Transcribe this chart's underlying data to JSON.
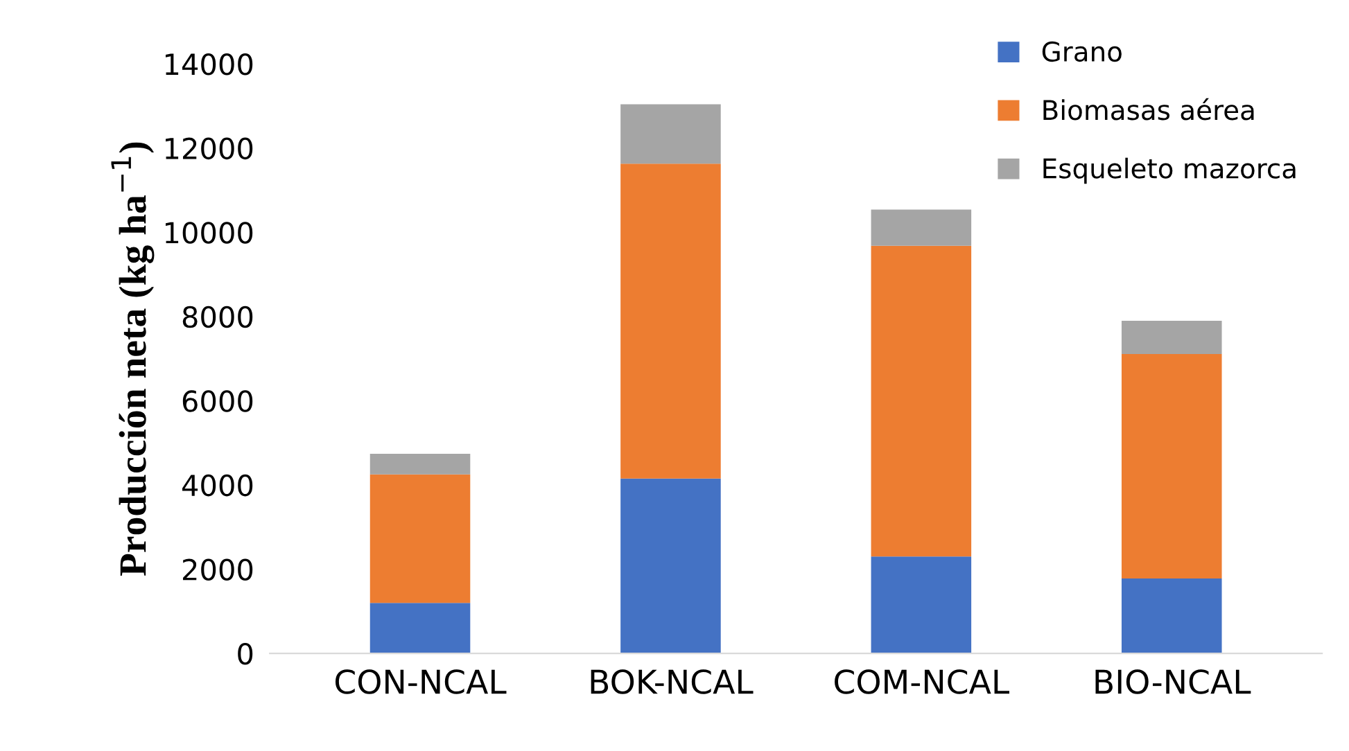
{
  "chart_data": {
    "type": "bar",
    "stacked": true,
    "ylabel": "Producción neta (kg ha$^{−1}$)",
    "categories": [
      "CON-NCAL",
      "BOK-NCAL",
      "COM-NCAL",
      "BIO-NCAL"
    ],
    "series": [
      {
        "name": "Grano",
        "color": "#4472c4",
        "values": [
          1200,
          4150,
          2300,
          1780
        ]
      },
      {
        "name": "Biomasas aérea",
        "color": "#ed7d31",
        "values": [
          3050,
          7480,
          7380,
          5330
        ]
      },
      {
        "name": "Esqueleto mazorca",
        "color": "#a5a5a5",
        "values": [
          490,
          1410,
          860,
          790
        ]
      }
    ],
    "ylim": [
      0,
      14000
    ],
    "yticks": [
      0,
      2000,
      4000,
      6000,
      8000,
      10000,
      12000,
      14000
    ],
    "grid": false,
    "legend": "top right"
  }
}
